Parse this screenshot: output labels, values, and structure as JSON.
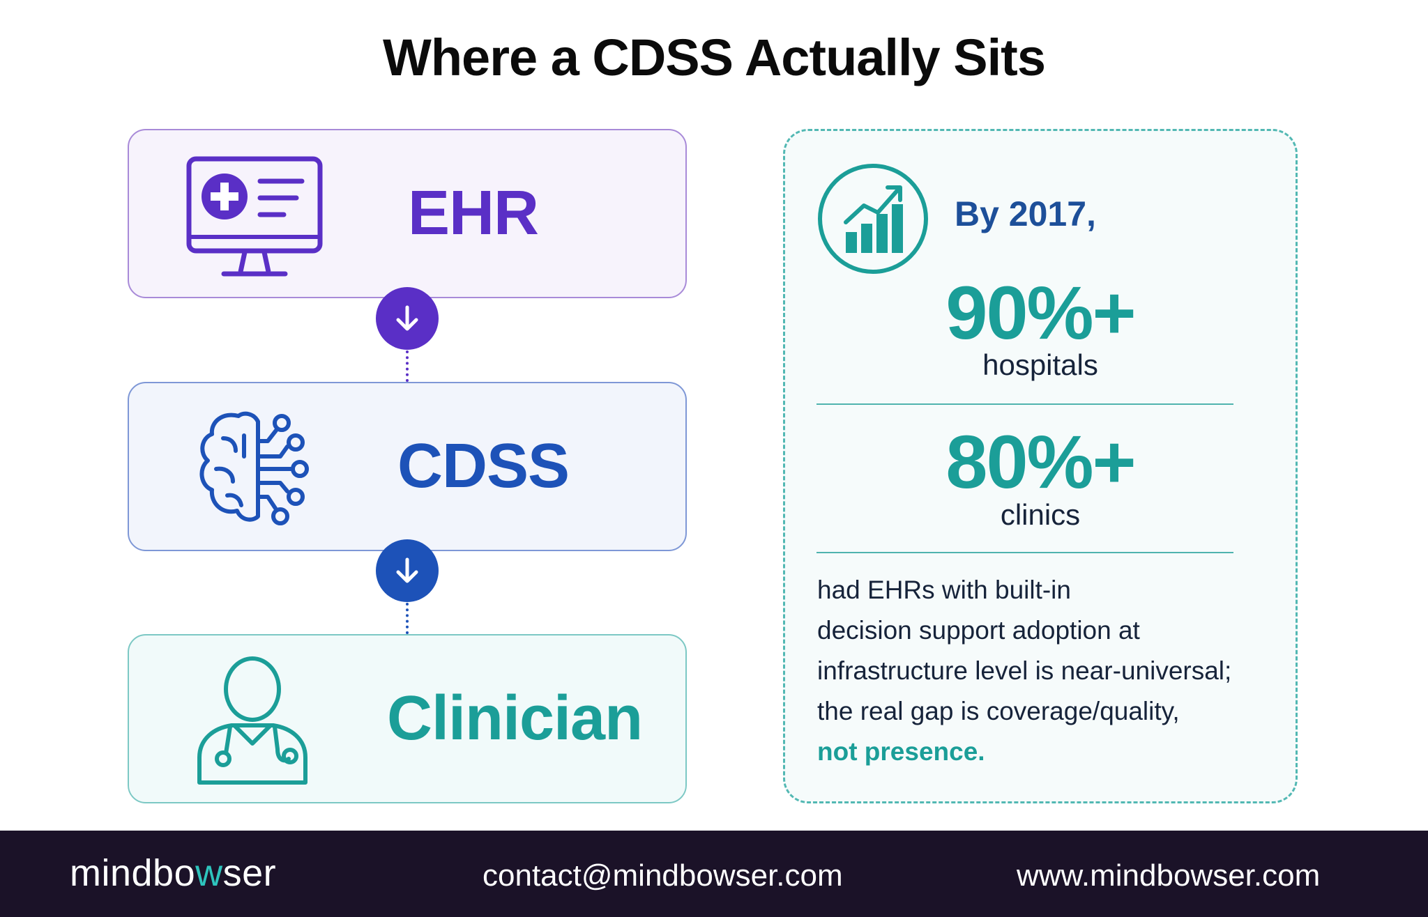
{
  "title": "Where a CDSS Actually Sits",
  "stack": {
    "ehr": {
      "label": "EHR",
      "icon": "computer-medical-record-icon",
      "color": "#5a2fc6"
    },
    "cdss": {
      "label": "CDSS",
      "icon": "brain-circuit-icon",
      "color": "#1d52b8"
    },
    "clinician": {
      "label": "Clinician",
      "icon": "doctor-stethoscope-icon",
      "color": "#1b9e98"
    }
  },
  "connectors": [
    {
      "icon": "arrow-down-icon",
      "color": "#5a2fc6"
    },
    {
      "icon": "arrow-down-icon",
      "color": "#1d52b8"
    }
  ],
  "stats": {
    "icon": "growth-chart-icon",
    "intro": "By 2017,",
    "items": [
      {
        "value": "90%+",
        "label": "hospitals"
      },
      {
        "value": "80%+",
        "label": "clinics"
      }
    ],
    "description_lines": [
      "had EHRs with built-in",
      "decision support adoption at",
      "infrastructure level is near-universal;",
      "the real gap is coverage/quality,"
    ],
    "emphasis": "not presence."
  },
  "footer": {
    "brand_start": "mindbo",
    "brand_accent": "w",
    "brand_end": "ser",
    "email": "contact@mindbowser.com",
    "website": "www.mindbowser.com"
  }
}
